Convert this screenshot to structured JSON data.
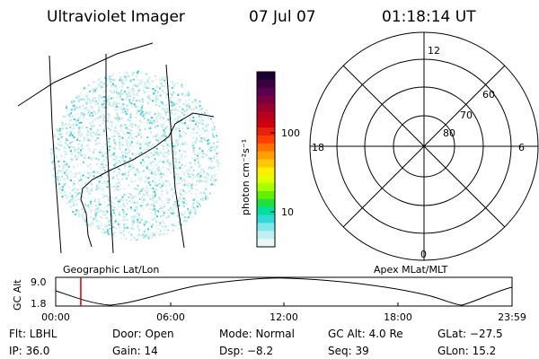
{
  "header": {
    "title": "Ultraviolet Imager",
    "date": "07 Jul 07",
    "time": "01:18:14 UT"
  },
  "colorbar": {
    "label": "photon cm⁻²s⁻¹",
    "ticks": [
      "100",
      "10"
    ],
    "colors": [
      "#1a0033",
      "#3a0040",
      "#5a0050",
      "#7a0040",
      "#9a0030",
      "#b80020",
      "#d00010",
      "#e82010",
      "#ff4000",
      "#ff7000",
      "#ffa000",
      "#ffc800",
      "#ffee00",
      "#e0ff00",
      "#a8ff00",
      "#60f000",
      "#20e040",
      "#00e0a0",
      "#30d8d8",
      "#80e8e8",
      "#c0f0f0",
      "#e8f8f8"
    ]
  },
  "polar_plot": {
    "clock_labels": [
      "12",
      "6",
      "0",
      "18"
    ],
    "lat_labels": [
      "60",
      "70",
      "80"
    ]
  },
  "timeline": {
    "left_label": "Geographic Lat/Lon",
    "right_label": "Apex MLat/MLT",
    "ylabel": "GC Alt",
    "ymax": "9.0",
    "ymin": "1.8",
    "time_ticks": [
      "00:00",
      "06:00",
      "12:00",
      "18:00",
      "23:59"
    ],
    "current_time_fraction": 0.055
  },
  "info": {
    "row1": {
      "flt": "Flt: LBHL",
      "door": "Door: Open",
      "mode": "Mode: Normal",
      "gcalt": "GC Alt: 4.0 Re",
      "glat": "GLat: −27.5"
    },
    "row2": {
      "ip": "IP: 36.0",
      "gain": "Gain: 14",
      "dsp": "Dsp:   −8.2",
      "seq": "Seq: 39",
      "glon": "GLon:  15.2"
    }
  },
  "colors": {
    "accent_cyan": "#30d8d8",
    "marker_red": "#d00000"
  }
}
